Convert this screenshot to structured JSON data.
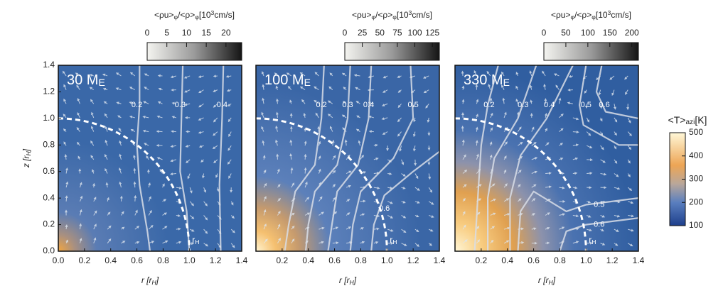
{
  "chart_data": [
    {
      "type": "heatmap",
      "title": "30 M",
      "title_sub": "E",
      "xlabel": [
        "r [r",
        "H",
        "]"
      ],
      "ylabel": [
        "z [r",
        "H",
        "]"
      ],
      "xlim": [
        0,
        1.4
      ],
      "ylim": [
        0,
        1.4
      ],
      "xticks": [
        {
          "value": 0,
          "label": "0.0"
        },
        0.2,
        0.4,
        0.6,
        0.8,
        {
          "value": 1,
          "label": "1.0"
        },
        1.2,
        1.4
      ],
      "yticks": [
        {
          "value": 0,
          "label": "0.0"
        },
        0.2,
        0.4,
        0.6,
        0.8,
        {
          "value": 1,
          "label": "1.0"
        },
        1.2,
        1.4
      ],
      "colorbar": {
        "label": [
          "<ρu>",
          "φ",
          "/<ρ>",
          "φ",
          "[10",
          "3",
          "cm/s]"
        ],
        "lim": [
          0,
          24
        ],
        "ticks": [
          0,
          5,
          10,
          15,
          20
        ]
      },
      "contours": [
        0.2,
        0.3,
        0.4
      ],
      "hill_label": [
        "r",
        "H"
      ]
    },
    {
      "type": "heatmap",
      "title": "100 M",
      "title_sub": "E",
      "xlabel": [
        "r [r",
        "H",
        "]"
      ],
      "xlim": [
        0,
        1.4
      ],
      "ylim": [
        0,
        1.4
      ],
      "xticks": [
        0.2,
        0.4,
        0.6,
        0.8,
        {
          "value": 1,
          "label": "1.0"
        },
        1.2,
        1.4
      ],
      "colorbar": {
        "label": [
          "<ρu>",
          "φ",
          "/<ρ>",
          "φ",
          "[10",
          "3",
          "cm/s]"
        ],
        "lim": [
          0,
          135
        ],
        "ticks": [
          0,
          25,
          50,
          75,
          100,
          125
        ]
      },
      "contours": [
        0.2,
        0.3,
        0.4,
        0.5,
        0.6
      ],
      "hill_label": [
        "r",
        "H"
      ]
    },
    {
      "type": "heatmap",
      "title": "330 M",
      "title_sub": "E",
      "xlabel": [
        "r [r",
        "H",
        "]"
      ],
      "xlim": [
        0,
        1.4
      ],
      "ylim": [
        0,
        1.4
      ],
      "xticks": [
        0.2,
        0.4,
        0.6,
        0.8,
        {
          "value": 1,
          "label": "1.0"
        },
        1.2,
        1.4
      ],
      "colorbar": {
        "label": [
          "<ρu>",
          "φ",
          "/<ρ>",
          "φ",
          "[10",
          "3",
          "cm/s]"
        ],
        "lim": [
          0,
          215
        ],
        "ticks": [
          0,
          50,
          100,
          150,
          200
        ]
      },
      "contours": [
        0.2,
        0.3,
        0.4,
        0.5,
        0.6,
        0.5,
        0.6
      ],
      "hill_label": [
        "r",
        "H"
      ]
    }
  ],
  "temperature_colorbar": {
    "label": [
      "<T>",
      "azi",
      "[K]"
    ],
    "lim": [
      100,
      500
    ],
    "ticks": [
      100,
      200,
      300,
      400,
      500
    ]
  }
}
